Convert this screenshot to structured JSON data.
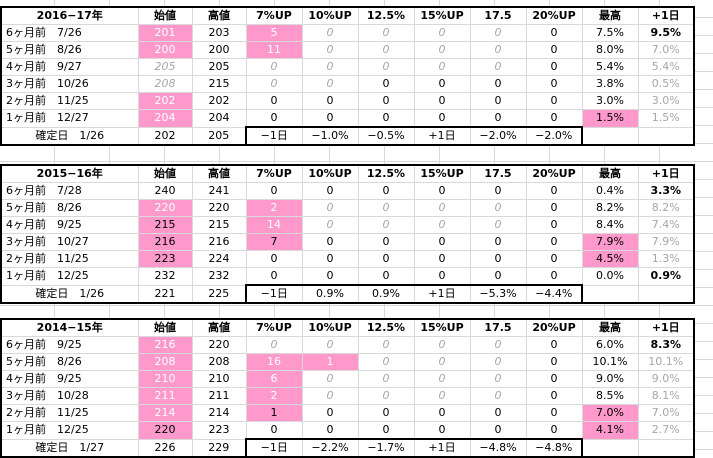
{
  "headers": [
    "始値",
    "高値",
    "7%UP",
    "10%UP",
    "12.5%",
    "15%UP",
    "17.5",
    "20%UP",
    "最高",
    "+1日"
  ],
  "blocks": [
    {
      "label": "2016−17年",
      "rows": [
        {
          "c0": "6ヶ月前　7/26",
          "open": "201",
          "high": "203",
          "u7": "5",
          "u10": "0",
          "u12": "0",
          "u15": "0",
          "u17": "0",
          "u20": "0",
          "max": "7.5%",
          "next": "9.5%"
        },
        {
          "c0": "5ヶ月前　8/26",
          "open": "200",
          "high": "200",
          "u7": "11",
          "u10": "0",
          "u12": "0",
          "u15": "0",
          "u17": "0",
          "u20": "0",
          "max": "8.0%",
          "next": "7.0%"
        },
        {
          "c0": "4ヶ月前　9/27",
          "open": "205",
          "high": "205",
          "u7": "0",
          "u10": "0",
          "u12": "0",
          "u15": "0",
          "u17": "0",
          "u20": "0",
          "max": "5.4%",
          "next": "5.4%"
        },
        {
          "c0": "3ヶ月前　10/26",
          "open": "208",
          "high": "215",
          "u7": "0",
          "u10": "0",
          "u12": "0",
          "u15": "0",
          "u17": "0",
          "u20": "0",
          "max": "3.8%",
          "next": "0.5%"
        },
        {
          "c0": "2ヶ月前　11/25",
          "open": "202",
          "high": "202",
          "u7": "0",
          "u10": "0",
          "u12": "0",
          "u15": "0",
          "u17": "0",
          "u20": "0",
          "max": "3.0%",
          "next": "3.0%"
        },
        {
          "c0": "1ヶ月前　12/27",
          "open": "204",
          "high": "204",
          "u7": "0",
          "u10": "0",
          "u12": "0",
          "u15": "0",
          "u17": "0",
          "u20": "0",
          "max": "1.5%",
          "next": "1.5%"
        }
      ],
      "final": {
        "c0": "確定日　1/26",
        "open": "202",
        "high": "205",
        "u7": "−1日",
        "u10": "−1.0%",
        "u12": "−0.5%",
        "u15": "+1日",
        "u17": "−2.0%",
        "u20": "−2.0%"
      }
    },
    {
      "label": "2015−16年",
      "rows": [
        {
          "c0": "6ヶ月前　7/28",
          "open": "240",
          "high": "241",
          "u7": "0",
          "u10": "0",
          "u12": "0",
          "u15": "0",
          "u17": "0",
          "u20": "0",
          "max": "0.4%",
          "next": "3.3%"
        },
        {
          "c0": "5ヶ月前　8/26",
          "open": "220",
          "high": "220",
          "u7": "2",
          "u10": "0",
          "u12": "0",
          "u15": "0",
          "u17": "0",
          "u20": "0",
          "max": "8.2%",
          "next": "8.2%"
        },
        {
          "c0": "4ヶ月前　9/25",
          "open": "215",
          "high": "215",
          "u7": "14",
          "u10": "0",
          "u12": "0",
          "u15": "0",
          "u17": "0",
          "u20": "0",
          "max": "8.4%",
          "next": "7.4%"
        },
        {
          "c0": "3ヶ月前　10/27",
          "open": "216",
          "high": "216",
          "u7": "7",
          "u10": "0",
          "u12": "0",
          "u15": "0",
          "u17": "0",
          "u20": "0",
          "max": "7.9%",
          "next": "7.9%"
        },
        {
          "c0": "2ヶ月前　11/25",
          "open": "223",
          "high": "224",
          "u7": "0",
          "u10": "0",
          "u12": "0",
          "u15": "0",
          "u17": "0",
          "u20": "0",
          "max": "4.5%",
          "next": "1.3%"
        },
        {
          "c0": "1ヶ月前　12/25",
          "open": "232",
          "high": "232",
          "u7": "0",
          "u10": "0",
          "u12": "0",
          "u15": "0",
          "u17": "0",
          "u20": "0",
          "max": "0.0%",
          "next": "0.9%"
        }
      ],
      "final": {
        "c0": "確定日　1/26",
        "open": "221",
        "high": "225",
        "u7": "−1日",
        "u10": "0.9%",
        "u12": "0.9%",
        "u15": "+1日",
        "u17": "−5.3%",
        "u20": "−4.4%"
      }
    },
    {
      "label": "2014−15年",
      "rows": [
        {
          "c0": "6ヶ月前　9/25",
          "open": "216",
          "high": "220",
          "u7": "0",
          "u10": "0",
          "u12": "0",
          "u15": "0",
          "u17": "0",
          "u20": "0",
          "max": "6.0%",
          "next": "8.3%"
        },
        {
          "c0": "5ヶ月前　8/26",
          "open": "208",
          "high": "208",
          "u7": "16",
          "u10": "1",
          "u12": "0",
          "u15": "0",
          "u17": "0",
          "u20": "0",
          "max": "10.1%",
          "next": "10.1%"
        },
        {
          "c0": "4ヶ月前　9/25",
          "open": "210",
          "high": "210",
          "u7": "6",
          "u10": "0",
          "u12": "0",
          "u15": "0",
          "u17": "0",
          "u20": "0",
          "max": "9.0%",
          "next": "9.0%"
        },
        {
          "c0": "3ヶ月前　10/28",
          "open": "211",
          "high": "211",
          "u7": "2",
          "u10": "0",
          "u12": "0",
          "u15": "0",
          "u17": "0",
          "u20": "0",
          "max": "8.5%",
          "next": "8.1%"
        },
        {
          "c0": "2ヶ月前　11/25",
          "open": "214",
          "high": "214",
          "u7": "1",
          "u10": "0",
          "u12": "0",
          "u15": "0",
          "u17": "0",
          "u20": "0",
          "max": "7.0%",
          "next": "7.0%"
        },
        {
          "c0": "1ヶ月前　12/25",
          "open": "220",
          "high": "223",
          "u7": "0",
          "u10": "0",
          "u12": "0",
          "u15": "0",
          "u17": "0",
          "u20": "0",
          "max": "4.1%",
          "next": "2.7%"
        }
      ],
      "final": {
        "c0": "確定日　1/27",
        "open": "226",
        "high": "229",
        "u7": "−1日",
        "u10": "−2.2%",
        "u12": "−1.7%",
        "u15": "+1日",
        "u17": "−4.8%",
        "u20": "−4.8%"
      }
    }
  ],
  "colors": {
    "highlight": "#ff99cc",
    "muted": "#a6a6a6",
    "gridline": "#d9d9d9"
  }
}
